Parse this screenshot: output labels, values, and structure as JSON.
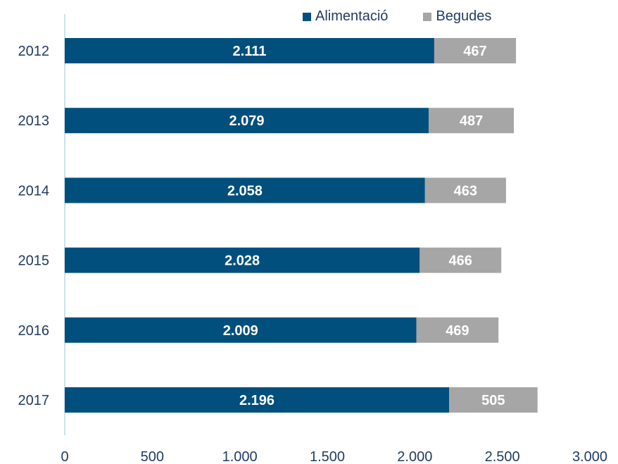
{
  "chart_data": {
    "type": "bar",
    "orientation": "horizontal",
    "stacked": true,
    "categories": [
      "2012",
      "2013",
      "2014",
      "2015",
      "2016",
      "2017"
    ],
    "series": [
      {
        "name": "Alimentació",
        "values": [
          2111,
          2079,
          2058,
          2028,
          2009,
          2196
        ],
        "labels": [
          "2.111",
          "2.079",
          "2.058",
          "2.028",
          "2.009",
          "2.196"
        ],
        "color": "#004f7c"
      },
      {
        "name": "Begudes",
        "values": [
          467,
          487,
          463,
          466,
          469,
          505
        ],
        "labels": [
          "467",
          "487",
          "463",
          "466",
          "469",
          "505"
        ],
        "color": "#a6a6a6"
      }
    ],
    "xlim": [
      0,
      3000
    ],
    "xticks": [
      0,
      500,
      1000,
      1500,
      2000,
      2500,
      3000
    ],
    "xtick_labels": [
      "0",
      "500",
      "1.000",
      "1.500",
      "2.000",
      "2.500",
      "3.000"
    ],
    "legend_position": "top",
    "grid": false,
    "title": "",
    "xlabel": "",
    "ylabel": ""
  }
}
